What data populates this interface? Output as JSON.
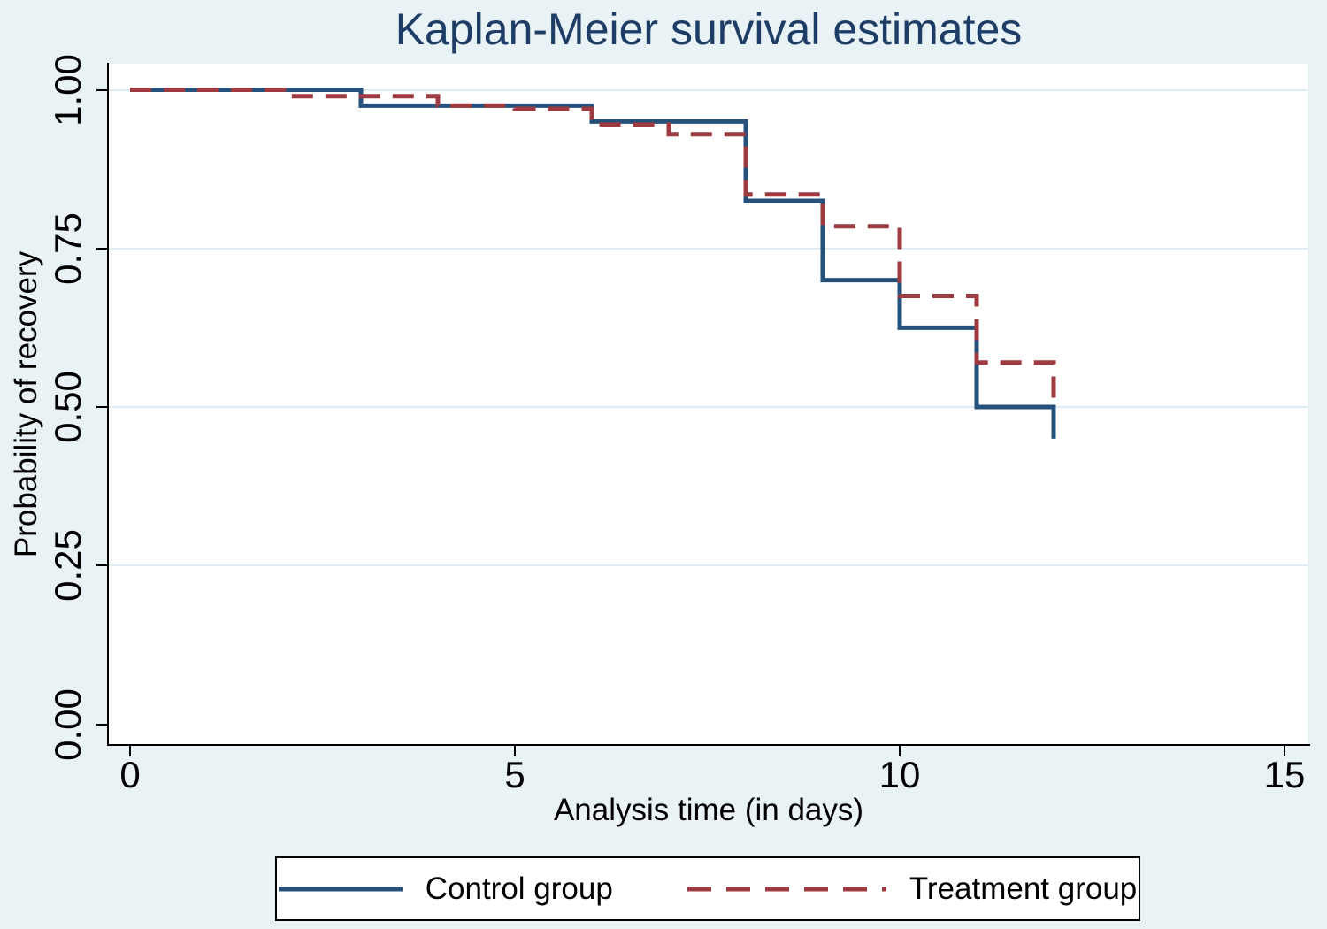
{
  "title": "Kaplan-Meier survival estimates",
  "chart_data": {
    "type": "line",
    "subtype": "step-post-survival",
    "title": "Kaplan-Meier survival estimates",
    "xlabel": "Analysis time (in days)",
    "ylabel": "Probability of recovery",
    "xlim": [
      0,
      15
    ],
    "ylim": [
      0.0,
      1.0
    ],
    "xticks": [
      "0",
      "5",
      "10",
      "15"
    ],
    "yticks": [
      "0.00",
      "0.25",
      "0.50",
      "0.75",
      "1.00"
    ],
    "grid": "horizontal-only",
    "legend_position": "bottom-box",
    "colors": {
      "background": "#e9f2f4",
      "plot_background": "#ffffff",
      "gridline": "#dfecf1",
      "title_text": "#1e3d66",
      "axis_text": "#000000",
      "control": "#26517b",
      "treatment": "#9d3b41"
    },
    "series": [
      {
        "name": "Control group",
        "style": "solid",
        "color": "#26517b",
        "points": [
          [
            0,
            1.0
          ],
          [
            3,
            0.975
          ],
          [
            6,
            0.95
          ],
          [
            8,
            0.825
          ],
          [
            9,
            0.7
          ],
          [
            10,
            0.625
          ],
          [
            11,
            0.5
          ],
          [
            12,
            0.45
          ]
        ]
      },
      {
        "name": "Treatment group",
        "style": "dashed",
        "color": "#9d3b41",
        "points": [
          [
            0,
            1.0
          ],
          [
            2,
            0.99
          ],
          [
            4,
            0.975
          ],
          [
            5,
            0.97
          ],
          [
            6,
            0.945
          ],
          [
            7,
            0.93
          ],
          [
            8,
            0.835
          ],
          [
            9,
            0.785
          ],
          [
            10,
            0.675
          ],
          [
            11,
            0.57
          ],
          [
            12,
            0.5
          ]
        ]
      }
    ]
  }
}
